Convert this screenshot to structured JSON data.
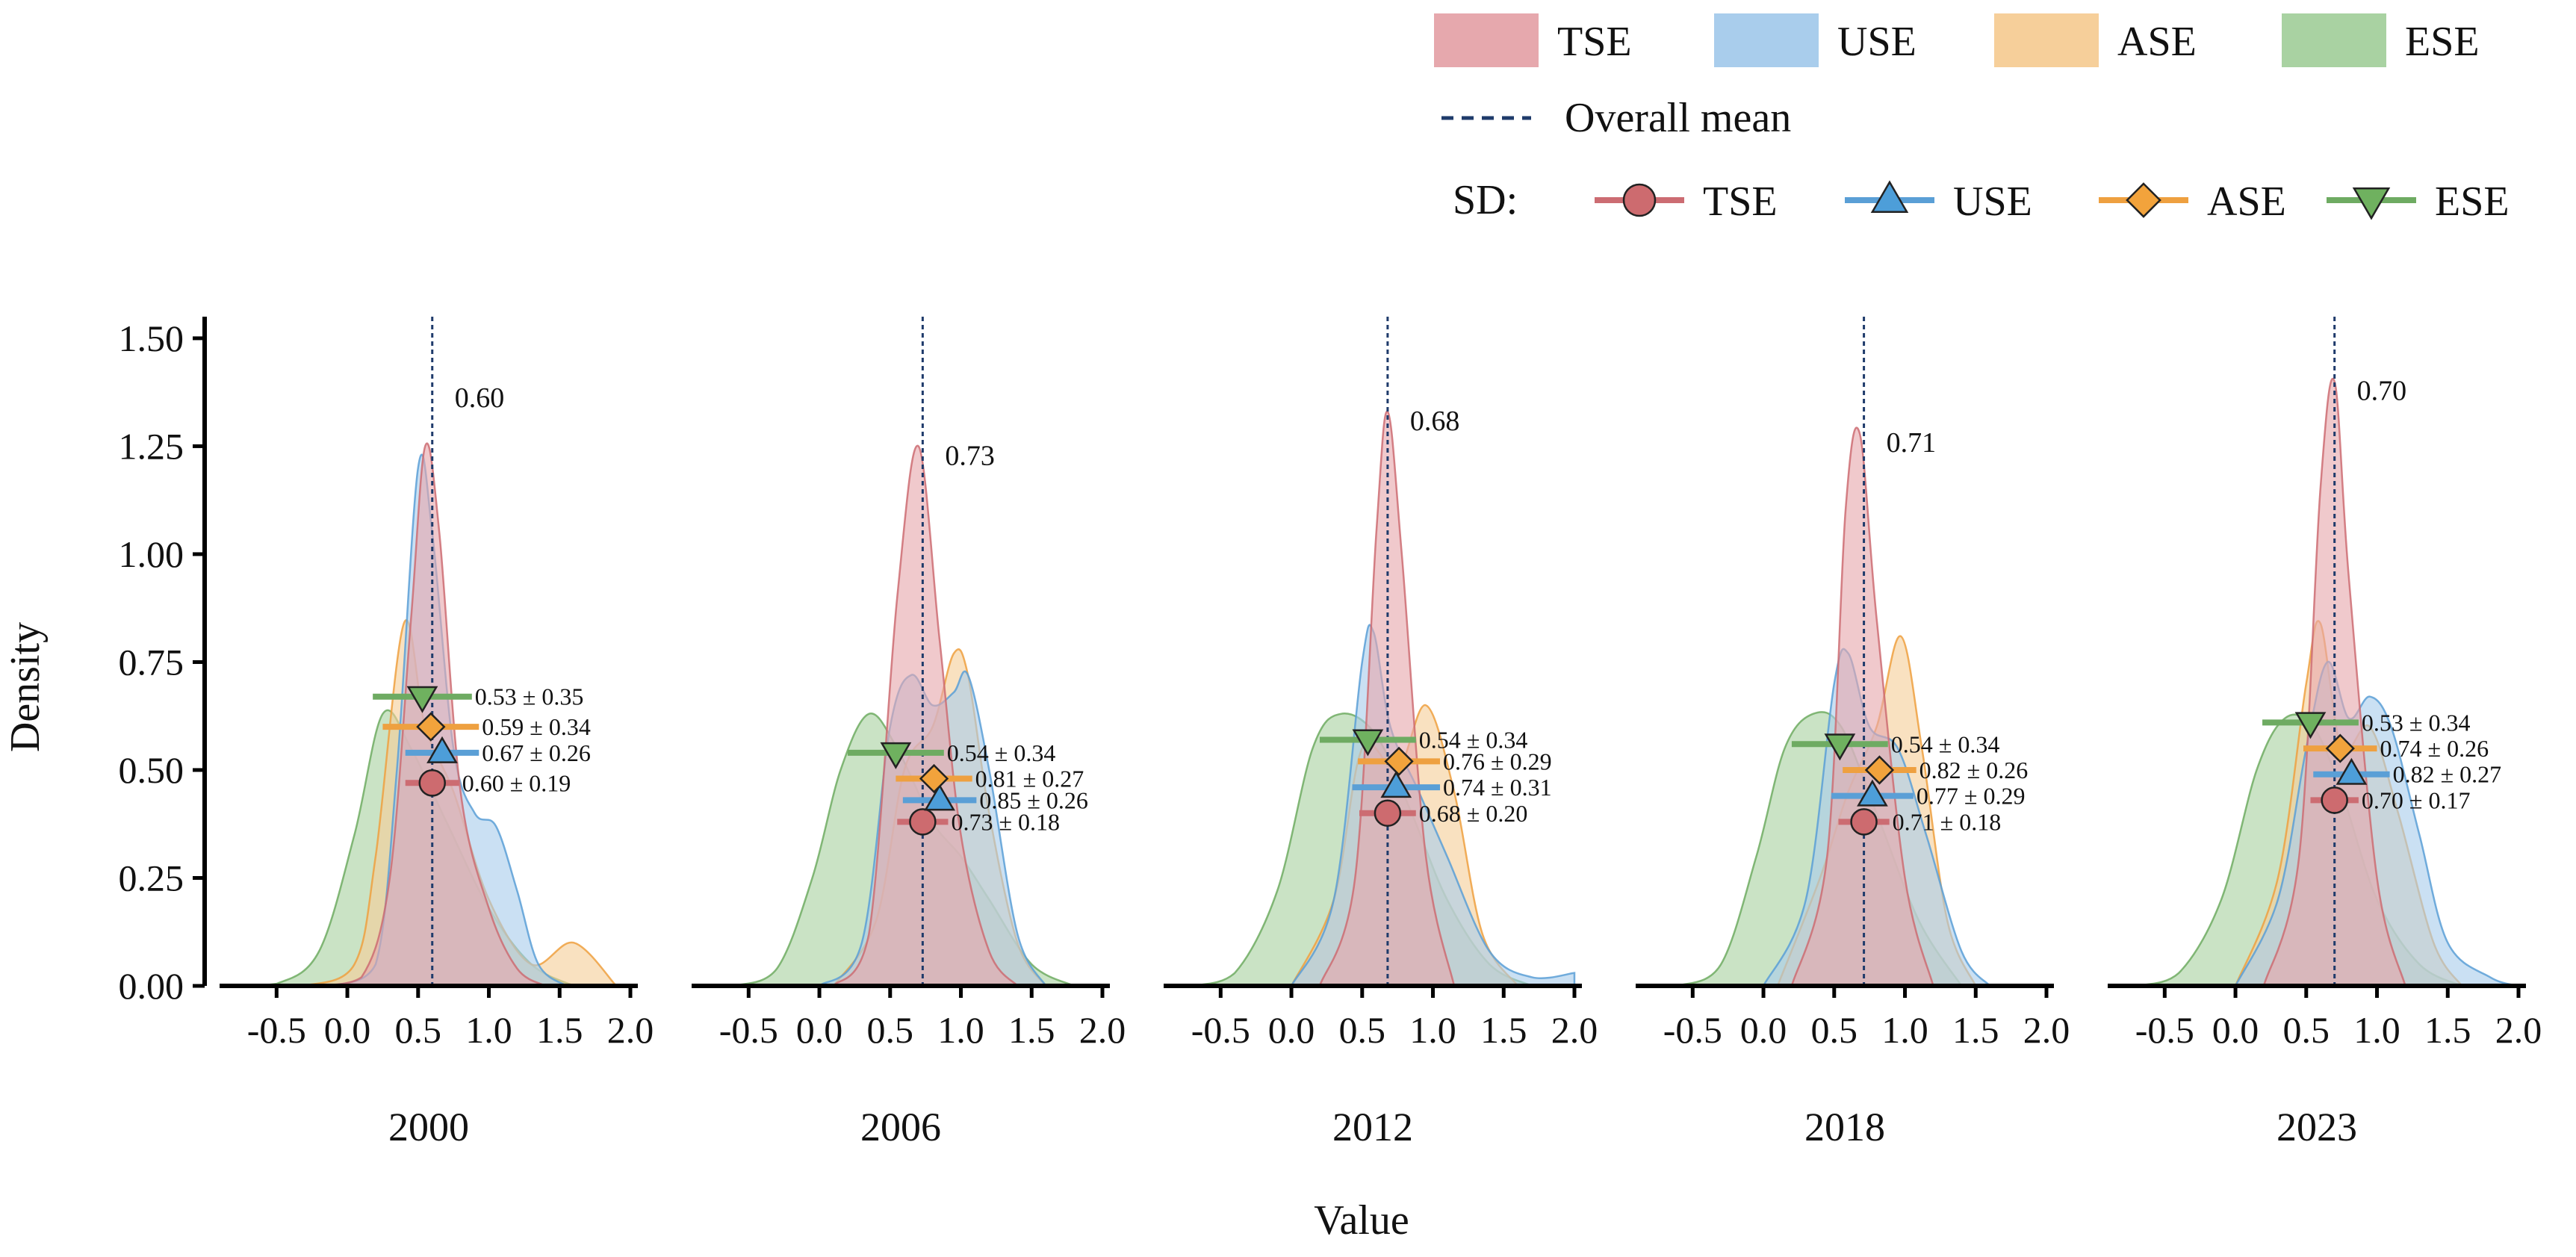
{
  "chart_data": {
    "type": "area",
    "subtype": "faceted density plot with mean ± SD point-ranges",
    "xlabel": "Value",
    "ylabel": "Density",
    "xlim": [
      -0.85,
      2.0
    ],
    "ylim": [
      0,
      1.55
    ],
    "x_ticks": [
      -0.5,
      0.0,
      0.5,
      1.0,
      1.5,
      2.0
    ],
    "x_tick_labels": [
      "-0.5",
      "0.0",
      "0.5",
      "1.0",
      "1.5",
      "2.0"
    ],
    "y_ticks": [
      0,
      0.25,
      0.5,
      0.75,
      1.0,
      1.25,
      1.5
    ],
    "y_tick_labels": [
      "0.00",
      "0.25",
      "0.50",
      "0.75",
      "1.00",
      "1.25",
      "1.50"
    ],
    "grid": false,
    "legend_position": "top-right",
    "series_styles": [
      {
        "name": "TSE",
        "fill": "#e6a8ad",
        "line": "#cc6c72",
        "marker": "circle",
        "marker_fill": "#cd6b6f"
      },
      {
        "name": "USE",
        "fill": "#a9cdec",
        "line": "#5a9fd6",
        "marker": "triangle-up",
        "marker_fill": "#4d9ed9"
      },
      {
        "name": "ASE",
        "fill": "#f6cf9a",
        "line": "#eea040",
        "marker": "diamond",
        "marker_fill": "#f2a33c"
      },
      {
        "name": "ESE",
        "fill": "#a9d2a2",
        "line": "#6eab62",
        "marker": "triangle-down",
        "marker_fill": "#6fb15f"
      }
    ],
    "mean_line": {
      "label": "Overall mean",
      "color": "#1f3b6b",
      "style": "dashed"
    },
    "sd_legend_title": "SD:",
    "facets": [
      {
        "label": "2000",
        "overall_mean": 0.6,
        "mean_label": "0.60",
        "densities": [
          {
            "series": "TSE",
            "x": [
              -0.2,
              0.1,
              0.3,
              0.45,
              0.55,
              0.65,
              0.8,
              1.0,
              1.2,
              1.4
            ],
            "y": [
              0,
              0.02,
              0.25,
              0.85,
              1.25,
              1.05,
              0.45,
              0.18,
              0.04,
              0
            ]
          },
          {
            "series": "USE",
            "x": [
              -0.1,
              0.2,
              0.35,
              0.5,
              0.6,
              0.75,
              0.9,
              1.05,
              1.2,
              1.35,
              1.55
            ],
            "y": [
              0,
              0.05,
              0.5,
              1.2,
              1.05,
              0.55,
              0.4,
              0.37,
              0.22,
              0.05,
              0
            ]
          },
          {
            "series": "ASE",
            "x": [
              -0.3,
              0.05,
              0.2,
              0.4,
              0.55,
              0.75,
              1.0,
              1.3,
              1.6,
              1.9
            ],
            "y": [
              0,
              0.05,
              0.3,
              0.84,
              0.6,
              0.45,
              0.2,
              0.05,
              0.1,
              0
            ]
          },
          {
            "series": "ESE",
            "x": [
              -0.8,
              -0.5,
              -0.2,
              0.05,
              0.25,
              0.45,
              0.7,
              1.0,
              1.3,
              1.6
            ],
            "y": [
              0,
              0.005,
              0.08,
              0.35,
              0.63,
              0.55,
              0.38,
              0.18,
              0.05,
              0
            ]
          }
        ],
        "sd_points": [
          {
            "series": "TSE",
            "mean": 0.6,
            "sd": 0.19,
            "y": 0.47,
            "label": "0.60 ± 0.19"
          },
          {
            "series": "USE",
            "mean": 0.67,
            "sd": 0.26,
            "y": 0.54,
            "label": "0.67 ± 0.26"
          },
          {
            "series": "ASE",
            "mean": 0.59,
            "sd": 0.34,
            "y": 0.6,
            "label": "0.59 ± 0.34"
          },
          {
            "series": "ESE",
            "mean": 0.53,
            "sd": 0.35,
            "y": 0.67,
            "label": "0.53 ± 0.35"
          }
        ]
      },
      {
        "label": "2006",
        "overall_mean": 0.73,
        "mean_label": "0.73",
        "densities": [
          {
            "series": "TSE",
            "x": [
              0.1,
              0.35,
              0.55,
              0.7,
              0.85,
              1.0,
              1.2,
              1.4
            ],
            "y": [
              0,
              0.12,
              0.9,
              1.25,
              0.8,
              0.35,
              0.08,
              0
            ]
          },
          {
            "series": "USE",
            "x": [
              0.0,
              0.3,
              0.5,
              0.65,
              0.8,
              0.95,
              1.05,
              1.2,
              1.4,
              1.6
            ],
            "y": [
              0,
              0.1,
              0.6,
              0.72,
              0.65,
              0.68,
              0.72,
              0.5,
              0.12,
              0
            ]
          },
          {
            "series": "ASE",
            "x": [
              0.1,
              0.4,
              0.6,
              0.8,
              0.95,
              1.05,
              1.2,
              1.4,
              1.6
            ],
            "y": [
              0,
              0.15,
              0.5,
              0.6,
              0.77,
              0.72,
              0.4,
              0.1,
              0
            ]
          },
          {
            "series": "ESE",
            "x": [
              -0.6,
              -0.3,
              -0.05,
              0.15,
              0.35,
              0.55,
              0.8,
              1.0,
              1.2,
              1.5,
              1.8
            ],
            "y": [
              0,
              0.04,
              0.25,
              0.5,
              0.63,
              0.55,
              0.38,
              0.3,
              0.2,
              0.05,
              0
            ]
          }
        ],
        "sd_points": [
          {
            "series": "TSE",
            "mean": 0.73,
            "sd": 0.18,
            "y": 0.38,
            "label": "0.73 ± 0.18"
          },
          {
            "series": "USE",
            "mean": 0.85,
            "sd": 0.26,
            "y": 0.43,
            "label": "0.85 ± 0.26"
          },
          {
            "series": "ASE",
            "mean": 0.81,
            "sd": 0.27,
            "y": 0.48,
            "label": "0.81 ± 0.27"
          },
          {
            "series": "ESE",
            "mean": 0.54,
            "sd": 0.34,
            "y": 0.54,
            "label": "0.54 ± 0.34"
          }
        ]
      },
      {
        "label": "2012",
        "overall_mean": 0.68,
        "mean_label": "0.68",
        "densities": [
          {
            "series": "TSE",
            "x": [
              0.2,
              0.45,
              0.6,
              0.68,
              0.78,
              0.95,
              1.15
            ],
            "y": [
              0,
              0.25,
              1.05,
              1.33,
              1.0,
              0.3,
              0
            ]
          },
          {
            "series": "USE",
            "x": [
              0.0,
              0.3,
              0.5,
              0.58,
              0.7,
              0.9,
              1.1,
              1.4,
              1.7,
              2.0
            ],
            "y": [
              0,
              0.2,
              0.75,
              0.82,
              0.6,
              0.45,
              0.3,
              0.08,
              0.02,
              0.03
            ]
          },
          {
            "series": "ASE",
            "x": [
              0.0,
              0.3,
              0.5,
              0.75,
              0.95,
              1.15,
              1.35,
              1.6
            ],
            "y": [
              0,
              0.2,
              0.55,
              0.5,
              0.65,
              0.45,
              0.12,
              0
            ]
          },
          {
            "series": "ESE",
            "x": [
              -0.7,
              -0.4,
              -0.1,
              0.15,
              0.35,
              0.6,
              0.85,
              1.1,
              1.4,
              1.7
            ],
            "y": [
              0,
              0.03,
              0.22,
              0.55,
              0.63,
              0.58,
              0.4,
              0.2,
              0.05,
              0
            ]
          }
        ],
        "sd_points": [
          {
            "series": "TSE",
            "mean": 0.68,
            "sd": 0.2,
            "y": 0.4,
            "label": "0.68 ± 0.20"
          },
          {
            "series": "USE",
            "mean": 0.74,
            "sd": 0.31,
            "y": 0.46,
            "label": "0.74 ± 0.31"
          },
          {
            "series": "ASE",
            "mean": 0.76,
            "sd": 0.29,
            "y": 0.52,
            "label": "0.76 ± 0.29"
          },
          {
            "series": "ESE",
            "mean": 0.54,
            "sd": 0.34,
            "y": 0.57,
            "label": "0.54 ± 0.34"
          }
        ]
      },
      {
        "label": "2018",
        "overall_mean": 0.71,
        "mean_label": "0.71",
        "densities": [
          {
            "series": "TSE",
            "x": [
              0.2,
              0.45,
              0.58,
              0.68,
              0.8,
              1.0,
              1.2
            ],
            "y": [
              0,
              0.3,
              1.1,
              1.28,
              0.85,
              0.25,
              0
            ]
          },
          {
            "series": "USE",
            "x": [
              0.0,
              0.3,
              0.5,
              0.6,
              0.75,
              0.95,
              1.15,
              1.4,
              1.6
            ],
            "y": [
              0,
              0.2,
              0.7,
              0.77,
              0.6,
              0.55,
              0.35,
              0.08,
              0
            ]
          },
          {
            "series": "ASE",
            "x": [
              0.1,
              0.4,
              0.6,
              0.8,
              0.97,
              1.12,
              1.3,
              1.5
            ],
            "y": [
              0,
              0.25,
              0.45,
              0.6,
              0.81,
              0.55,
              0.15,
              0
            ]
          },
          {
            "series": "ESE",
            "x": [
              -0.6,
              -0.3,
              -0.05,
              0.15,
              0.35,
              0.55,
              0.8,
              1.1,
              1.4
            ],
            "y": [
              0,
              0.05,
              0.3,
              0.55,
              0.63,
              0.6,
              0.4,
              0.15,
              0
            ]
          }
        ],
        "sd_points": [
          {
            "series": "TSE",
            "mean": 0.71,
            "sd": 0.18,
            "y": 0.38,
            "label": "0.71 ± 0.18"
          },
          {
            "series": "USE",
            "mean": 0.77,
            "sd": 0.29,
            "y": 0.44,
            "label": "0.77 ± 0.29"
          },
          {
            "series": "ASE",
            "mean": 0.82,
            "sd": 0.26,
            "y": 0.5,
            "label": "0.82 ± 0.26"
          },
          {
            "series": "ESE",
            "mean": 0.54,
            "sd": 0.34,
            "y": 0.56,
            "label": "0.54 ± 0.34"
          }
        ]
      },
      {
        "label": "2023",
        "overall_mean": 0.7,
        "mean_label": "0.70",
        "densities": [
          {
            "series": "TSE",
            "x": [
              0.2,
              0.45,
              0.6,
              0.7,
              0.8,
              1.0,
              1.2
            ],
            "y": [
              0,
              0.3,
              1.15,
              1.4,
              0.95,
              0.25,
              0
            ]
          },
          {
            "series": "USE",
            "x": [
              0.0,
              0.3,
              0.5,
              0.65,
              0.8,
              0.95,
              1.1,
              1.3,
              1.5,
              1.8,
              2.0
            ],
            "y": [
              0,
              0.2,
              0.55,
              0.75,
              0.62,
              0.67,
              0.6,
              0.35,
              0.1,
              0.02,
              0
            ]
          },
          {
            "series": "ASE",
            "x": [
              0.0,
              0.3,
              0.5,
              0.6,
              0.75,
              0.95,
              1.15,
              1.4,
              1.6
            ],
            "y": [
              0,
              0.25,
              0.7,
              0.84,
              0.55,
              0.6,
              0.4,
              0.1,
              0
            ]
          },
          {
            "series": "ESE",
            "x": [
              -0.7,
              -0.4,
              -0.1,
              0.15,
              0.35,
              0.55,
              0.75,
              1.0,
              1.3,
              1.6
            ],
            "y": [
              0,
              0.03,
              0.2,
              0.5,
              0.62,
              0.6,
              0.45,
              0.2,
              0.05,
              0
            ]
          }
        ],
        "sd_points": [
          {
            "series": "TSE",
            "mean": 0.7,
            "sd": 0.17,
            "y": 0.43,
            "label": "0.70 ± 0.17"
          },
          {
            "series": "USE",
            "mean": 0.82,
            "sd": 0.27,
            "y": 0.49,
            "label": "0.82 ± 0.27"
          },
          {
            "series": "ASE",
            "mean": 0.74,
            "sd": 0.26,
            "y": 0.55,
            "label": "0.74 ± 0.26"
          },
          {
            "series": "ESE",
            "mean": 0.53,
            "sd": 0.34,
            "y": 0.61,
            "label": "0.53 ± 0.34"
          }
        ]
      }
    ]
  }
}
